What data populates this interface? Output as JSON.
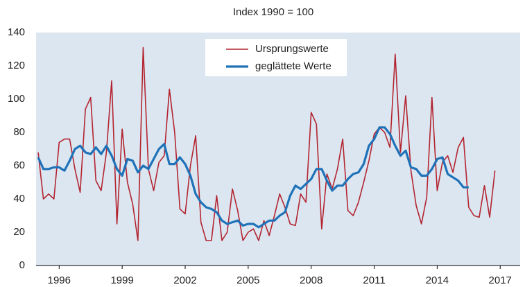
{
  "chart_data": {
    "type": "line",
    "title": "Index 1990 = 100",
    "x": [
      1995,
      1995.25,
      1995.5,
      1995.75,
      1996,
      1996.25,
      1996.5,
      1996.75,
      1997,
      1997.25,
      1997.5,
      1997.75,
      1998,
      1998.25,
      1998.5,
      1998.75,
      1999,
      1999.25,
      1999.5,
      1999.75,
      2000,
      2000.25,
      2000.5,
      2000.75,
      2001,
      2001.25,
      2001.5,
      2001.75,
      2002,
      2002.25,
      2002.5,
      2002.75,
      2003,
      2003.25,
      2003.5,
      2003.75,
      2004,
      2004.25,
      2004.5,
      2004.75,
      2005,
      2005.25,
      2005.5,
      2005.75,
      2006,
      2006.25,
      2006.5,
      2006.75,
      2007,
      2007.25,
      2007.5,
      2007.75,
      2008,
      2008.25,
      2008.5,
      2008.75,
      2009,
      2009.25,
      2009.5,
      2009.75,
      2010,
      2010.25,
      2010.5,
      2010.75,
      2011,
      2011.25,
      2011.5,
      2011.75,
      2012,
      2012.25,
      2012.5,
      2012.75,
      2013,
      2013.25,
      2013.5,
      2013.75,
      2014,
      2014.25,
      2014.5,
      2014.75,
      2015,
      2015.25,
      2015.5,
      2015.75,
      2016,
      2016.25,
      2016.5,
      2016.75
    ],
    "series": [
      {
        "name": "Ursprungswerte",
        "color": "#b3242f",
        "width": 1.6,
        "values": [
          68,
          40,
          43,
          40,
          74,
          76,
          76,
          58,
          44,
          94,
          101,
          51,
          45,
          68,
          111,
          25,
          82,
          50,
          37,
          15,
          131,
          58,
          45,
          62,
          66,
          106,
          80,
          34,
          31,
          60,
          78,
          26,
          15,
          15,
          42,
          15,
          20,
          46,
          33,
          15,
          20,
          22,
          15,
          27,
          18,
          30,
          43,
          35,
          25,
          24,
          43,
          38,
          92,
          85,
          22,
          55,
          46,
          58,
          76,
          33,
          30,
          38,
          50,
          63,
          79,
          83,
          80,
          71,
          127,
          68,
          102,
          57,
          36,
          25,
          41,
          101,
          45,
          62,
          66,
          56,
          71,
          77,
          35,
          30,
          29,
          48,
          29,
          57
        ]
      },
      {
        "name": "geglättete Werte",
        "color": "#1f72b8",
        "width": 3.2,
        "values": [
          65,
          58,
          58,
          59,
          59,
          57,
          63,
          70,
          72,
          68,
          67,
          71,
          67,
          72,
          66,
          58,
          54,
          64,
          63,
          56,
          60,
          58,
          64,
          70,
          73,
          61,
          61,
          65,
          61,
          54,
          43,
          38,
          35,
          34,
          32,
          27,
          25,
          26,
          27,
          24,
          25,
          25,
          23,
          25,
          27,
          27,
          30,
          32,
          42,
          48,
          46,
          49,
          52,
          58,
          58,
          51,
          45,
          48,
          48,
          52,
          55,
          56,
          61,
          72,
          76,
          83,
          83,
          79,
          72,
          66,
          69,
          59,
          58,
          54,
          54,
          58,
          64,
          65,
          55,
          53,
          51,
          47,
          47,
          null,
          null,
          null,
          null,
          null
        ]
      }
    ],
    "xlim": [
      1994.9,
      2017.95
    ],
    "xticks": [
      1996,
      1999,
      2002,
      2005,
      2008,
      2011,
      2014,
      2017
    ],
    "ylim": [
      0,
      140
    ],
    "yticks": [
      0,
      20,
      40,
      60,
      80,
      100,
      120,
      140
    ],
    "grid": false,
    "legend": "top",
    "background": "#dbe6f1"
  }
}
